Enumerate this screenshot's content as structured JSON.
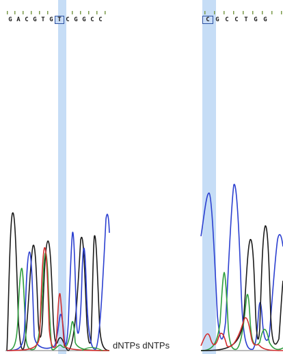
{
  "figure": {
    "left_sequence": [
      "G",
      "A",
      "C",
      "G",
      "T",
      "G",
      "T",
      "C",
      "G",
      "G",
      "C",
      "C"
    ],
    "left_highlight_index": 6,
    "right_sequence": [
      "C",
      "G",
      "C",
      "C",
      "T",
      "G",
      "G"
    ],
    "right_highlight_index": 0,
    "footer_label": "dNTPs dNTPs",
    "colors": {
      "A": "#2e9e3e",
      "C": "#2b3fd0",
      "G": "#1a1a1a",
      "T": "#d22f2f",
      "highlight": "#bcd7f5"
    }
  }
}
